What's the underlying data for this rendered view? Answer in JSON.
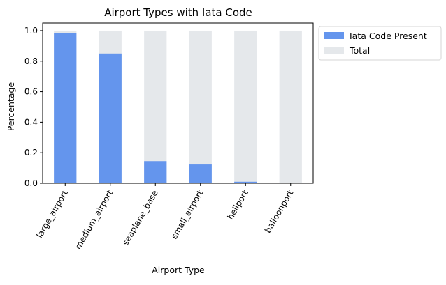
{
  "chart_data": {
    "type": "bar",
    "stacked": "overlay",
    "title": "Airport Types with Iata Code",
    "xlabel": "Airport Type",
    "ylabel": "Percentage",
    "categories": [
      "large_airport",
      "medium_airport",
      "seaplane_base",
      "small_airport",
      "heliport",
      "balloonport"
    ],
    "ylim": [
      0,
      1.05
    ],
    "yticks": [
      0.0,
      0.2,
      0.4,
      0.6,
      0.8,
      1.0
    ],
    "ytick_labels": [
      "0.0",
      "0.2",
      "0.4",
      "0.6",
      "0.8",
      "1.0"
    ],
    "grid": false,
    "legend_position": "outside-top-right",
    "series": [
      {
        "name": "Total",
        "values": [
          1.0,
          1.0,
          1.0,
          1.0,
          1.0,
          1.0
        ],
        "color": "#e5e8eb"
      },
      {
        "name": "Iata Code Present",
        "values": [
          0.985,
          0.85,
          0.145,
          0.123,
          0.01,
          0.0
        ],
        "color": "#6495ed"
      }
    ],
    "legend_order": [
      "Iata Code Present",
      "Total"
    ]
  }
}
